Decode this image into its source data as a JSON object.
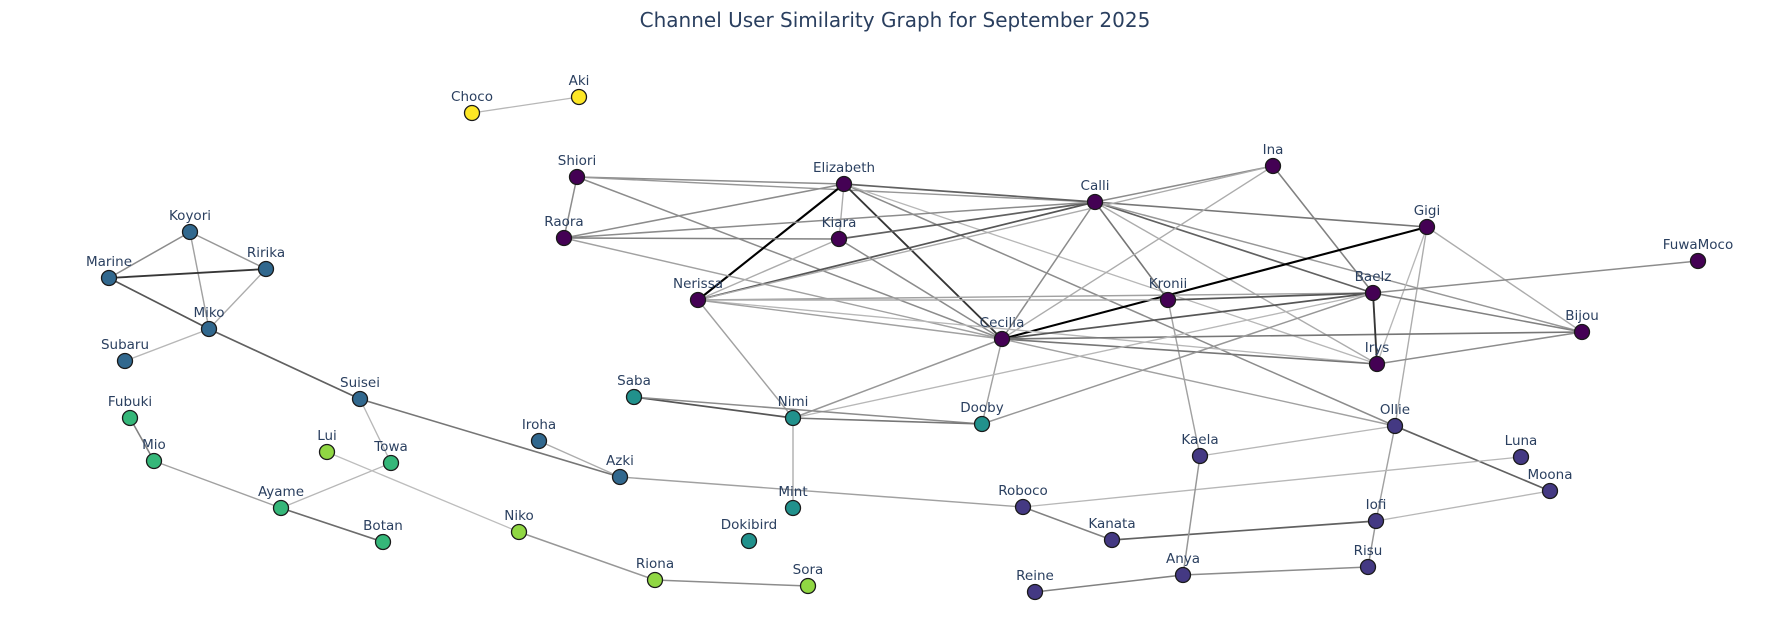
{
  "title": "Channel User Similarity Graph for September 2025",
  "chart_data": {
    "type": "network",
    "title": "Channel User Similarity Graph for September 2025",
    "nodes": [
      {
        "id": "Choco",
        "label": "Choco",
        "cluster": 6,
        "color": "#fde725"
      },
      {
        "id": "Aki",
        "label": "Aki",
        "cluster": 6,
        "color": "#fde725"
      },
      {
        "id": "Shiori",
        "label": "Shiori",
        "cluster": 0,
        "color": "#440154"
      },
      {
        "id": "Elizabeth",
        "label": "Elizabeth",
        "cluster": 0,
        "color": "#440154"
      },
      {
        "id": "Calli",
        "label": "Calli",
        "cluster": 0,
        "color": "#440154"
      },
      {
        "id": "Ina",
        "label": "Ina",
        "cluster": 0,
        "color": "#440154"
      },
      {
        "id": "Gigi",
        "label": "Gigi",
        "cluster": 0,
        "color": "#440154"
      },
      {
        "id": "FuwaMoco",
        "label": "FuwaMoco",
        "cluster": 0,
        "color": "#440154"
      },
      {
        "id": "Raora",
        "label": "Raora",
        "cluster": 0,
        "color": "#440154"
      },
      {
        "id": "Kiara",
        "label": "Kiara",
        "cluster": 0,
        "color": "#440154"
      },
      {
        "id": "Nerissa",
        "label": "Nerissa",
        "cluster": 0,
        "color": "#440154"
      },
      {
        "id": "Kronii",
        "label": "Kronii",
        "cluster": 0,
        "color": "#440154"
      },
      {
        "id": "Baelz",
        "label": "Baelz",
        "cluster": 0,
        "color": "#440154"
      },
      {
        "id": "Cecilia",
        "label": "Cecilia",
        "cluster": 0,
        "color": "#440154"
      },
      {
        "id": "Bijou",
        "label": "Bijou",
        "cluster": 0,
        "color": "#440154"
      },
      {
        "id": "Irys",
        "label": "Irys",
        "cluster": 0,
        "color": "#440154"
      },
      {
        "id": "Koyori",
        "label": "Koyori",
        "cluster": 2,
        "color": "#31688e"
      },
      {
        "id": "Ririka",
        "label": "Ririka",
        "cluster": 2,
        "color": "#31688e"
      },
      {
        "id": "Marine",
        "label": "Marine",
        "cluster": 2,
        "color": "#31688e"
      },
      {
        "id": "Miko",
        "label": "Miko",
        "cluster": 2,
        "color": "#31688e"
      },
      {
        "id": "Subaru",
        "label": "Subaru",
        "cluster": 2,
        "color": "#31688e"
      },
      {
        "id": "Suisei",
        "label": "Suisei",
        "cluster": 2,
        "color": "#31688e"
      },
      {
        "id": "Iroha",
        "label": "Iroha",
        "cluster": 2,
        "color": "#31688e"
      },
      {
        "id": "Azki",
        "label": "Azki",
        "cluster": 2,
        "color": "#31688e"
      },
      {
        "id": "Saba",
        "label": "Saba",
        "cluster": 3,
        "color": "#21918c"
      },
      {
        "id": "Nimi",
        "label": "Nimi",
        "cluster": 3,
        "color": "#21918c"
      },
      {
        "id": "Dooby",
        "label": "Dooby",
        "cluster": 3,
        "color": "#21918c"
      },
      {
        "id": "Mint",
        "label": "Mint",
        "cluster": 3,
        "color": "#21918c"
      },
      {
        "id": "Dokibird",
        "label": "Dokibird",
        "cluster": 3,
        "color": "#21918c"
      },
      {
        "id": "Fubuki",
        "label": "Fubuki",
        "cluster": 4,
        "color": "#35b779"
      },
      {
        "id": "Mio",
        "label": "Mio",
        "cluster": 4,
        "color": "#35b779"
      },
      {
        "id": "Towa",
        "label": "Towa",
        "cluster": 4,
        "color": "#35b779"
      },
      {
        "id": "Ayame",
        "label": "Ayame",
        "cluster": 4,
        "color": "#35b779"
      },
      {
        "id": "Botan",
        "label": "Botan",
        "cluster": 4,
        "color": "#35b779"
      },
      {
        "id": "Lui",
        "label": "Lui",
        "cluster": 5,
        "color": "#90d743"
      },
      {
        "id": "Niko",
        "label": "Niko",
        "cluster": 5,
        "color": "#90d743"
      },
      {
        "id": "Riona",
        "label": "Riona",
        "cluster": 5,
        "color": "#90d743"
      },
      {
        "id": "Sora",
        "label": "Sora",
        "cluster": 5,
        "color": "#90d743"
      },
      {
        "id": "Ollie",
        "label": "Ollie",
        "cluster": 1,
        "color": "#443983"
      },
      {
        "id": "Luna",
        "label": "Luna",
        "cluster": 1,
        "color": "#443983"
      },
      {
        "id": "Kaela",
        "label": "Kaela",
        "cluster": 1,
        "color": "#443983"
      },
      {
        "id": "Moona",
        "label": "Moona",
        "cluster": 1,
        "color": "#443983"
      },
      {
        "id": "Roboco",
        "label": "Roboco",
        "cluster": 1,
        "color": "#443983"
      },
      {
        "id": "Iofi",
        "label": "Iofi",
        "cluster": 1,
        "color": "#443983"
      },
      {
        "id": "Kanata",
        "label": "Kanata",
        "cluster": 1,
        "color": "#443983"
      },
      {
        "id": "Risu",
        "label": "Risu",
        "cluster": 1,
        "color": "#443983"
      },
      {
        "id": "Reine",
        "label": "Reine",
        "cluster": 1,
        "color": "#443983"
      },
      {
        "id": "Anya",
        "label": "Anya",
        "cluster": 1,
        "color": "#443983"
      }
    ],
    "edges": [
      {
        "source": "Choco",
        "target": "Aki",
        "weight": 0.15
      },
      {
        "source": "Shiori",
        "target": "Elizabeth",
        "weight": 0.35
      },
      {
        "source": "Shiori",
        "target": "Raora",
        "weight": 0.35
      },
      {
        "source": "Shiori",
        "target": "Cecilia",
        "weight": 0.35
      },
      {
        "source": "Shiori",
        "target": "Calli",
        "weight": 0.3
      },
      {
        "source": "Elizabeth",
        "target": "Calli",
        "weight": 0.55
      },
      {
        "source": "Elizabeth",
        "target": "Cecilia",
        "weight": 0.75
      },
      {
        "source": "Elizabeth",
        "target": "Nerissa",
        "weight": 1.0
      },
      {
        "source": "Elizabeth",
        "target": "Raora",
        "weight": 0.35
      },
      {
        "source": "Elizabeth",
        "target": "Kiara",
        "weight": 0.2
      },
      {
        "source": "Elizabeth",
        "target": "Ollie",
        "weight": 0.35
      },
      {
        "source": "Elizabeth",
        "target": "Irys",
        "weight": 0.15
      },
      {
        "source": "Calli",
        "target": "Ina",
        "weight": 0.35
      },
      {
        "source": "Calli",
        "target": "Gigi",
        "weight": 0.45
      },
      {
        "source": "Calli",
        "target": "Kiara",
        "weight": 0.55
      },
      {
        "source": "Calli",
        "target": "Nerissa",
        "weight": 0.6
      },
      {
        "source": "Calli",
        "target": "Raora",
        "weight": 0.35
      },
      {
        "source": "Calli",
        "target": "Kronii",
        "weight": 0.45
      },
      {
        "source": "Calli",
        "target": "Baelz",
        "weight": 0.55
      },
      {
        "source": "Calli",
        "target": "Bijou",
        "weight": 0.3
      },
      {
        "source": "Calli",
        "target": "Cecilia",
        "weight": 0.35
      },
      {
        "source": "Calli",
        "target": "Irys",
        "weight": 0.2
      },
      {
        "source": "Ina",
        "target": "Baelz",
        "weight": 0.4
      },
      {
        "source": "Ina",
        "target": "Nerissa",
        "weight": 0.2
      },
      {
        "source": "Ina",
        "target": "Cecilia",
        "weight": 0.2
      },
      {
        "source": "Gigi",
        "target": "Cecilia",
        "weight": 1.0
      },
      {
        "source": "Gigi",
        "target": "Bijou",
        "weight": 0.2
      },
      {
        "source": "Gigi",
        "target": "Ollie",
        "weight": 0.2
      },
      {
        "source": "Gigi",
        "target": "Irys",
        "weight": 0.15
      },
      {
        "source": "Raora",
        "target": "Kiara",
        "weight": 0.4
      },
      {
        "source": "Raora",
        "target": "Cecilia",
        "weight": 0.25
      },
      {
        "source": "Kiara",
        "target": "Nerissa",
        "weight": 0.2
      },
      {
        "source": "Kiara",
        "target": "Cecilia",
        "weight": 0.35
      },
      {
        "source": "Nerissa",
        "target": "Baelz",
        "weight": 0.25
      },
      {
        "source": "Nerissa",
        "target": "Kronii",
        "weight": 0.2
      },
      {
        "source": "Nerissa",
        "target": "Nimi",
        "weight": 0.25
      },
      {
        "source": "Nerissa",
        "target": "Irys",
        "weight": 0.15
      },
      {
        "source": "Nerissa",
        "target": "Cecilia",
        "weight": 0.25
      },
      {
        "source": "Kronii",
        "target": "Baelz",
        "weight": 0.6
      },
      {
        "source": "Kronii",
        "target": "Kaela",
        "weight": 0.25
      },
      {
        "source": "Cecilia",
        "target": "Baelz",
        "weight": 0.6
      },
      {
        "source": "Cecilia",
        "target": "Bijou",
        "weight": 0.45
      },
      {
        "source": "Cecilia",
        "target": "Irys",
        "weight": 0.45
      },
      {
        "source": "Cecilia",
        "target": "Dooby",
        "weight": 0.25
      },
      {
        "source": "Cecilia",
        "target": "Nimi",
        "weight": 0.3
      },
      {
        "source": "Cecilia",
        "target": "Ollie",
        "weight": 0.25
      },
      {
        "source": "Baelz",
        "target": "Irys",
        "weight": 0.75
      },
      {
        "source": "Baelz",
        "target": "Bijou",
        "weight": 0.4
      },
      {
        "source": "Baelz",
        "target": "FuwaMoco",
        "weight": 0.35
      },
      {
        "source": "Baelz",
        "target": "Dooby",
        "weight": 0.3
      },
      {
        "source": "Baelz",
        "target": "Nimi",
        "weight": 0.15
      },
      {
        "source": "Bijou",
        "target": "Irys",
        "weight": 0.35
      },
      {
        "source": "Koyori",
        "target": "Marine",
        "weight": 0.35
      },
      {
        "source": "Koyori",
        "target": "Ririka",
        "weight": 0.3
      },
      {
        "source": "Koyori",
        "target": "Miko",
        "weight": 0.25
      },
      {
        "source": "Marine",
        "target": "Ririka",
        "weight": 0.75
      },
      {
        "source": "Marine",
        "target": "Miko",
        "weight": 0.6
      },
      {
        "source": "Ririka",
        "target": "Miko",
        "weight": 0.2
      },
      {
        "source": "Miko",
        "target": "Subaru",
        "weight": 0.15
      },
      {
        "source": "Miko",
        "target": "Suisei",
        "weight": 0.55
      },
      {
        "source": "Suisei",
        "target": "Azki",
        "weight": 0.45
      },
      {
        "source": "Suisei",
        "target": "Towa",
        "weight": 0.15
      },
      {
        "source": "Iroha",
        "target": "Azki",
        "weight": 0.2
      },
      {
        "source": "Azki",
        "target": "Roboco",
        "weight": 0.25
      },
      {
        "source": "Saba",
        "target": "Nimi",
        "weight": 0.6
      },
      {
        "source": "Saba",
        "target": "Dooby",
        "weight": 0.35
      },
      {
        "source": "Nimi",
        "target": "Dooby",
        "weight": 0.45
      },
      {
        "source": "Nimi",
        "target": "Mint",
        "weight": 0.2
      },
      {
        "source": "Fubuki",
        "target": "Mio",
        "weight": 0.4
      },
      {
        "source": "Mio",
        "target": "Ayame",
        "weight": 0.25
      },
      {
        "source": "Ayame",
        "target": "Botan",
        "weight": 0.5
      },
      {
        "source": "Ayame",
        "target": "Towa",
        "weight": 0.15
      },
      {
        "source": "Lui",
        "target": "Niko",
        "weight": 0.12
      },
      {
        "source": "Niko",
        "target": "Riona",
        "weight": 0.3
      },
      {
        "source": "Riona",
        "target": "Sora",
        "weight": 0.35
      },
      {
        "source": "Ollie",
        "target": "Moona",
        "weight": 0.55
      },
      {
        "source": "Ollie",
        "target": "Iofi",
        "weight": 0.25
      },
      {
        "source": "Ollie",
        "target": "Kaela",
        "weight": 0.15
      },
      {
        "source": "Luna",
        "target": "Roboco",
        "weight": 0.15
      },
      {
        "source": "Iofi",
        "target": "Kanata",
        "weight": 0.55
      },
      {
        "source": "Iofi",
        "target": "Risu",
        "weight": 0.3
      },
      {
        "source": "Iofi",
        "target": "Moona",
        "weight": 0.15
      },
      {
        "source": "Roboco",
        "target": "Kanata",
        "weight": 0.4
      },
      {
        "source": "Risu",
        "target": "Anya",
        "weight": 0.35
      },
      {
        "source": "Anya",
        "target": "Reine",
        "weight": 0.4
      },
      {
        "source": "Anya",
        "target": "Kaela",
        "weight": 0.3
      }
    ]
  }
}
